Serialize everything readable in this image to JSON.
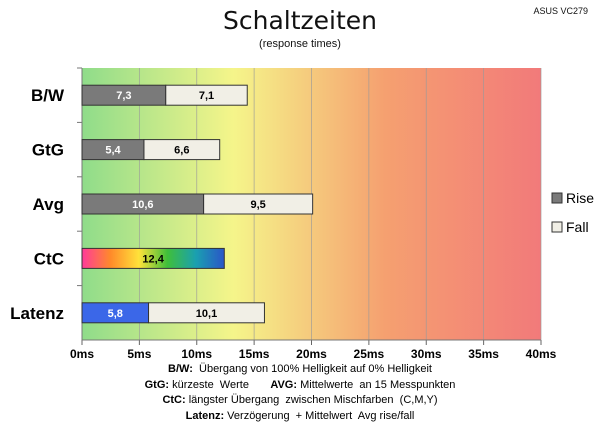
{
  "brand": "ASUS VC279",
  "chart_data": {
    "type": "bar",
    "stacked": true,
    "orientation": "horizontal",
    "title": "Schaltzeiten",
    "subtitle": "(response times)",
    "categories": [
      "B/W",
      "GtG",
      "Avg",
      "CtC",
      "Latenz"
    ],
    "series": [
      {
        "name": "Rise",
        "values": [
          7.3,
          5.4,
          10.6,
          12.4,
          5.8
        ],
        "labels": [
          "7,3",
          "5,4",
          "10,6",
          "12,4",
          "5,8"
        ]
      },
      {
        "name": "Fall",
        "values": [
          7.1,
          6.6,
          9.5,
          null,
          10.1
        ],
        "labels": [
          "7,1",
          "6,6",
          "9,5",
          "",
          "10,1"
        ]
      }
    ],
    "xlim": [
      0,
      40
    ],
    "xticks": [
      "0ms",
      "5ms",
      "10ms",
      "15ms",
      "20ms",
      "25ms",
      "30ms",
      "35ms",
      "40ms"
    ],
    "grid": true,
    "legend": "right",
    "colors": {
      "rise": "#7a7a7a",
      "fall": "#f1efe6",
      "latency": "#3b67e8",
      "background_gradient": [
        "#8fdc8a",
        "#f5f58a",
        "#f5a070",
        "#f27a7a"
      ]
    }
  },
  "footnotes": [
    {
      "key": "B/W:",
      "text": "  Übergang von 100% Helligkeit auf 0% Helligkeit"
    },
    {
      "key": "GtG:",
      "text": " kürzeste  Werte       ",
      "key2": "AVG:",
      "text2": " Mittelwerte  an 15 Messpunkten"
    },
    {
      "key": "CtC:",
      "text": " längster Übergang  zwischen Mischfarben  (C,M,Y)"
    },
    {
      "key": "Latenz:",
      "text": " Verzögerung  + Mittelwert  Avg rise/fall"
    }
  ]
}
